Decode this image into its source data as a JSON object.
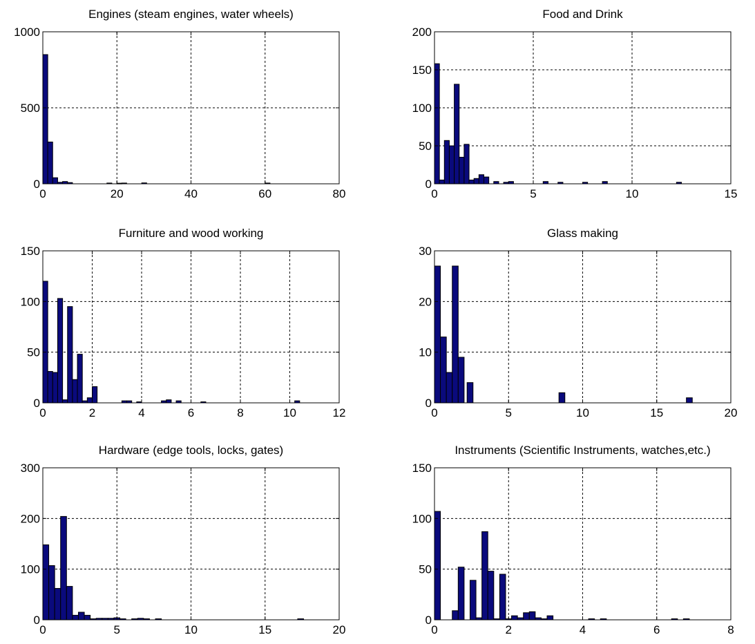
{
  "colors": {
    "bar_fill": "#0a0a7c",
    "bar_edge": "#000000",
    "axes": "#000000",
    "background": "#ffffff"
  },
  "chart_data": [
    {
      "type": "bar",
      "title": "Engines (steam engines, water wheels)",
      "xlabel": "",
      "ylabel": "",
      "xlim": [
        0,
        80
      ],
      "ylim": [
        0,
        1000
      ],
      "xticks": [
        "0",
        "20",
        "40",
        "60",
        "80"
      ],
      "yticks": [
        "0",
        "500",
        "1000"
      ],
      "grid": true,
      "bin_width": 1.33,
      "bins": [
        {
          "x": 0.0,
          "v": 850
        },
        {
          "x": 1.33,
          "v": 275
        },
        {
          "x": 2.67,
          "v": 40
        },
        {
          "x": 4.0,
          "v": 10
        },
        {
          "x": 5.33,
          "v": 15
        },
        {
          "x": 6.67,
          "v": 8
        },
        {
          "x": 17.3,
          "v": 5
        },
        {
          "x": 20.0,
          "v": 4
        },
        {
          "x": 21.3,
          "v": 5
        },
        {
          "x": 26.7,
          "v": 6
        },
        {
          "x": 60.0,
          "v": 5
        }
      ]
    },
    {
      "type": "bar",
      "title": "Food and Drink",
      "xlabel": "",
      "ylabel": "",
      "xlim": [
        0,
        15
      ],
      "ylim": [
        0,
        200
      ],
      "xticks": [
        "0",
        "5",
        "10",
        "15"
      ],
      "yticks": [
        "0",
        "50",
        "100",
        "150",
        "200"
      ],
      "grid": true,
      "bin_width": 0.25,
      "bins": [
        {
          "x": 0.0,
          "v": 158
        },
        {
          "x": 0.25,
          "v": 5
        },
        {
          "x": 0.5,
          "v": 57
        },
        {
          "x": 0.75,
          "v": 50
        },
        {
          "x": 1.0,
          "v": 131
        },
        {
          "x": 1.25,
          "v": 35
        },
        {
          "x": 1.5,
          "v": 52
        },
        {
          "x": 1.75,
          "v": 5
        },
        {
          "x": 2.0,
          "v": 7
        },
        {
          "x": 2.25,
          "v": 12
        },
        {
          "x": 2.5,
          "v": 9
        },
        {
          "x": 3.0,
          "v": 3
        },
        {
          "x": 3.5,
          "v": 2
        },
        {
          "x": 3.75,
          "v": 3
        },
        {
          "x": 5.5,
          "v": 3
        },
        {
          "x": 6.25,
          "v": 2
        },
        {
          "x": 7.5,
          "v": 2
        },
        {
          "x": 8.5,
          "v": 3
        },
        {
          "x": 12.25,
          "v": 2
        }
      ]
    },
    {
      "type": "bar",
      "title": "Furniture and wood working",
      "xlabel": "",
      "ylabel": "",
      "xlim": [
        0,
        12
      ],
      "ylim": [
        0,
        150
      ],
      "xticks": [
        "0",
        "2",
        "4",
        "6",
        "8",
        "10",
        "12"
      ],
      "yticks": [
        "0",
        "50",
        "100",
        "150"
      ],
      "grid": true,
      "bin_width": 0.2,
      "bins": [
        {
          "x": 0.0,
          "v": 120
        },
        {
          "x": 0.2,
          "v": 31
        },
        {
          "x": 0.4,
          "v": 30
        },
        {
          "x": 0.6,
          "v": 103
        },
        {
          "x": 0.8,
          "v": 3
        },
        {
          "x": 1.0,
          "v": 95
        },
        {
          "x": 1.2,
          "v": 23
        },
        {
          "x": 1.4,
          "v": 48
        },
        {
          "x": 1.6,
          "v": 2
        },
        {
          "x": 1.8,
          "v": 5
        },
        {
          "x": 2.0,
          "v": 16
        },
        {
          "x": 3.2,
          "v": 2
        },
        {
          "x": 3.4,
          "v": 2
        },
        {
          "x": 3.8,
          "v": 1
        },
        {
          "x": 4.8,
          "v": 2
        },
        {
          "x": 5.0,
          "v": 3
        },
        {
          "x": 5.4,
          "v": 2
        },
        {
          "x": 6.4,
          "v": 1
        },
        {
          "x": 10.2,
          "v": 2
        }
      ]
    },
    {
      "type": "bar",
      "title": "Glass making",
      "xlabel": "",
      "ylabel": "",
      "xlim": [
        0,
        20
      ],
      "ylim": [
        0,
        30
      ],
      "xticks": [
        "0",
        "5",
        "10",
        "15",
        "20"
      ],
      "yticks": [
        "0",
        "10",
        "20",
        "30"
      ],
      "grid": true,
      "bin_width": 0.4,
      "bins": [
        {
          "x": 0.0,
          "v": 27
        },
        {
          "x": 0.4,
          "v": 13
        },
        {
          "x": 0.8,
          "v": 6
        },
        {
          "x": 1.2,
          "v": 27
        },
        {
          "x": 1.6,
          "v": 9
        },
        {
          "x": 2.0,
          "v": 0
        },
        {
          "x": 2.2,
          "v": 4
        },
        {
          "x": 8.4,
          "v": 2
        },
        {
          "x": 17.0,
          "v": 1
        }
      ]
    },
    {
      "type": "bar",
      "title": "Hardware (edge tools, locks, gates)",
      "xlabel": "",
      "ylabel": "",
      "xlim": [
        0,
        20
      ],
      "ylim": [
        0,
        300
      ],
      "xticks": [
        "0",
        "5",
        "10",
        "15",
        "20"
      ],
      "yticks": [
        "0",
        "100",
        "200",
        "300"
      ],
      "grid": true,
      "bin_width": 0.4,
      "bins": [
        {
          "x": 0.0,
          "v": 148
        },
        {
          "x": 0.4,
          "v": 107
        },
        {
          "x": 0.8,
          "v": 62
        },
        {
          "x": 1.2,
          "v": 204
        },
        {
          "x": 1.6,
          "v": 66
        },
        {
          "x": 2.0,
          "v": 9
        },
        {
          "x": 2.4,
          "v": 15
        },
        {
          "x": 2.8,
          "v": 9
        },
        {
          "x": 3.2,
          "v": 2
        },
        {
          "x": 3.6,
          "v": 3
        },
        {
          "x": 4.0,
          "v": 3
        },
        {
          "x": 4.4,
          "v": 3
        },
        {
          "x": 4.8,
          "v": 4
        },
        {
          "x": 5.2,
          "v": 2
        },
        {
          "x": 6.0,
          "v": 2
        },
        {
          "x": 6.4,
          "v": 3
        },
        {
          "x": 6.8,
          "v": 2
        },
        {
          "x": 7.6,
          "v": 2
        },
        {
          "x": 17.2,
          "v": 2
        }
      ]
    },
    {
      "type": "bar",
      "title": "Instruments (Scientific Instruments, watches,etc.)",
      "xlabel": "",
      "ylabel": "",
      "xlim": [
        0,
        8
      ],
      "ylim": [
        0,
        150
      ],
      "xticks": [
        "0",
        "2",
        "4",
        "6",
        "8"
      ],
      "yticks": [
        "0",
        "50",
        "100",
        "150"
      ],
      "grid": true,
      "bin_width": 0.16,
      "bins": [
        {
          "x": 0.0,
          "v": 107
        },
        {
          "x": 0.48,
          "v": 9
        },
        {
          "x": 0.64,
          "v": 52
        },
        {
          "x": 0.8,
          "v": 0
        },
        {
          "x": 0.96,
          "v": 39
        },
        {
          "x": 1.12,
          "v": 2
        },
        {
          "x": 1.28,
          "v": 87
        },
        {
          "x": 1.44,
          "v": 48
        },
        {
          "x": 1.6,
          "v": 1
        },
        {
          "x": 1.76,
          "v": 45
        },
        {
          "x": 1.92,
          "v": 1
        },
        {
          "x": 2.08,
          "v": 4
        },
        {
          "x": 2.24,
          "v": 2
        },
        {
          "x": 2.4,
          "v": 7
        },
        {
          "x": 2.56,
          "v": 8
        },
        {
          "x": 2.72,
          "v": 2
        },
        {
          "x": 2.88,
          "v": 1
        },
        {
          "x": 3.04,
          "v": 4
        },
        {
          "x": 4.16,
          "v": 1
        },
        {
          "x": 4.48,
          "v": 1
        },
        {
          "x": 6.4,
          "v": 1
        },
        {
          "x": 6.72,
          "v": 1
        }
      ]
    }
  ]
}
